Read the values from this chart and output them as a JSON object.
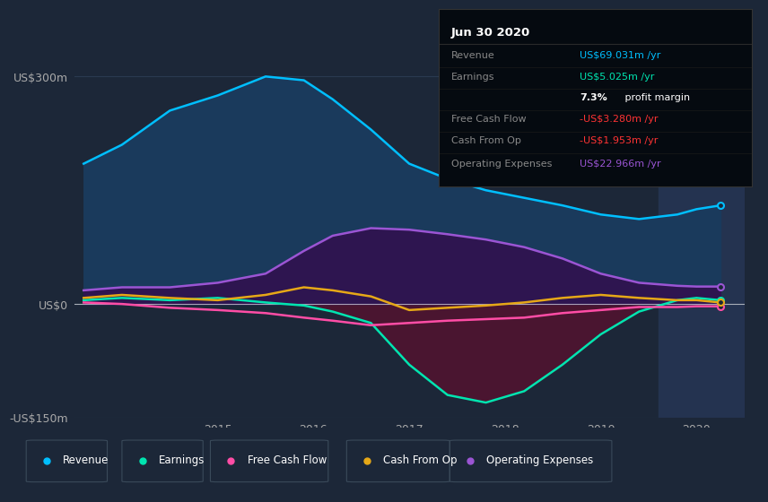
{
  "bg_color": "#1c2738",
  "plot_bg_color": "#1c2738",
  "highlight_bg": "#243350",
  "y_label_300": "US$300m",
  "y_label_0": "US$0",
  "y_label_neg150": "-US$150m",
  "x_ticks": [
    2015,
    2016,
    2017,
    2018,
    2019,
    2020
  ],
  "years": [
    2013.6,
    2014.0,
    2014.5,
    2015.0,
    2015.5,
    2015.9,
    2016.2,
    2016.6,
    2017.0,
    2017.4,
    2017.8,
    2018.2,
    2018.6,
    2019.0,
    2019.4,
    2019.8,
    2020.0,
    2020.25
  ],
  "revenue": [
    185,
    210,
    255,
    275,
    300,
    295,
    270,
    230,
    185,
    165,
    150,
    140,
    130,
    118,
    112,
    118,
    125,
    130
  ],
  "earnings": [
    5,
    8,
    5,
    8,
    2,
    -2,
    -10,
    -25,
    -80,
    -120,
    -130,
    -115,
    -80,
    -40,
    -10,
    5,
    8,
    5
  ],
  "free_cash": [
    2,
    0,
    -5,
    -8,
    -12,
    -18,
    -22,
    -28,
    -25,
    -22,
    -20,
    -18,
    -12,
    -8,
    -4,
    -4,
    -3,
    -3
  ],
  "cash_from_op": [
    8,
    12,
    8,
    5,
    12,
    22,
    18,
    10,
    -8,
    -5,
    -2,
    2,
    8,
    12,
    8,
    5,
    5,
    2
  ],
  "op_expenses": [
    18,
    22,
    22,
    28,
    40,
    70,
    90,
    100,
    98,
    92,
    85,
    75,
    60,
    40,
    28,
    24,
    23,
    23
  ],
  "revenue_color": "#00bfff",
  "earnings_color": "#00e5b0",
  "free_cash_color": "#ff4da6",
  "cash_from_op_color": "#e6a817",
  "op_expenses_color": "#9b55d4",
  "revenue_fill": "#1a3a5c",
  "earnings_fill_neg": "#4a1530",
  "op_expenses_fill": "#2e1550",
  "highlight_x_start": 2019.6,
  "highlight_x_end": 2020.5,
  "info_box_title": "Jun 30 2020",
  "legend": [
    {
      "label": "Revenue",
      "color": "#00bfff"
    },
    {
      "label": "Earnings",
      "color": "#00e5b0"
    },
    {
      "label": "Free Cash Flow",
      "color": "#ff4da6"
    },
    {
      "label": "Cash From Op",
      "color": "#e6a817"
    },
    {
      "label": "Operating Expenses",
      "color": "#9b55d4"
    }
  ],
  "ylim": [
    -150,
    320
  ],
  "xlim": [
    2013.5,
    2020.5
  ]
}
